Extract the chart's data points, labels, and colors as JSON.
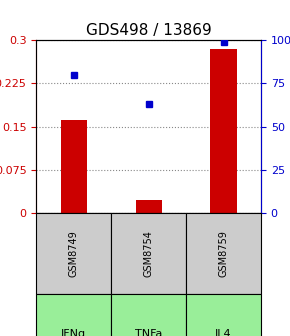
{
  "title": "GDS498 / 13869",
  "samples": [
    "GSM8749",
    "GSM8754",
    "GSM8759"
  ],
  "agents": [
    "IFNg",
    "TNFa",
    "IL4"
  ],
  "log_ratios": [
    0.162,
    0.022,
    0.285
  ],
  "percentile_ranks": [
    80,
    63,
    99
  ],
  "ylim_left": [
    0,
    0.3
  ],
  "ylim_right": [
    0,
    100
  ],
  "yticks_left": [
    0,
    0.075,
    0.15,
    0.225,
    0.3
  ],
  "ytick_labels_left": [
    "0",
    "0.075",
    "0.15",
    "0.225",
    "0.3"
  ],
  "yticks_right": [
    0,
    25,
    50,
    75,
    100
  ],
  "ytick_labels_right": [
    "0",
    "25",
    "50",
    "75",
    "100%"
  ],
  "bar_color": "#cc0000",
  "point_color": "#0000cc",
  "grid_color": "#888888",
  "sample_bg_color": "#cccccc",
  "agent_bg_color": "#99ee99",
  "agent_bg_color_alt": "#bbffbb",
  "title_fontsize": 11,
  "label_fontsize": 8,
  "tick_fontsize": 8
}
